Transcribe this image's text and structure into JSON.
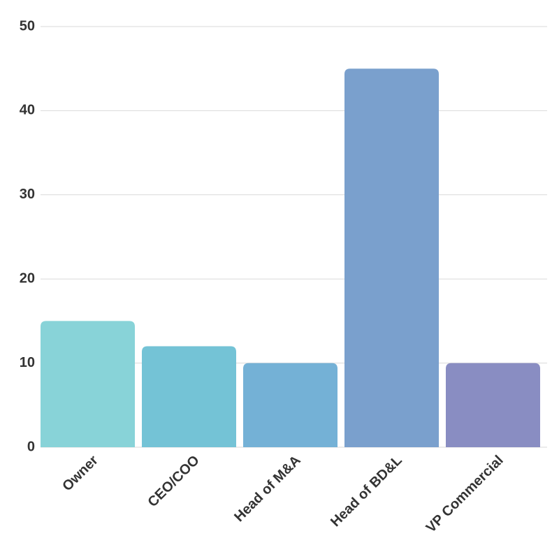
{
  "chart_data": {
    "type": "bar",
    "categories": [
      "Owner",
      "CEO/COO",
      "Head of M&A",
      "Head of BD&L",
      "VP Commercial"
    ],
    "values": [
      15,
      12,
      10,
      45,
      10
    ],
    "colors": [
      "#88d3d8",
      "#74c3d6",
      "#74b1d6",
      "#7aa0cd",
      "#898dc2"
    ],
    "ylim": [
      0,
      50
    ],
    "yticks": [
      0,
      10,
      20,
      30,
      40,
      50
    ],
    "grid": true
  }
}
